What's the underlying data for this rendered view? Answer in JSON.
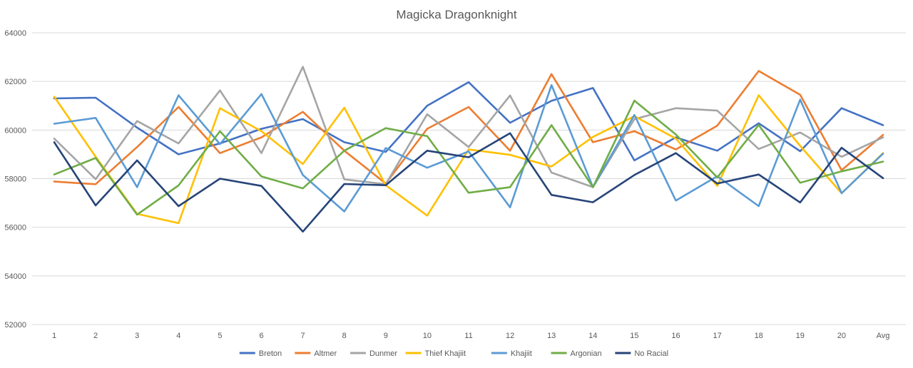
{
  "chart_data": {
    "type": "line",
    "title": "Magicka Dragonknight",
    "xlabel": "",
    "ylabel": "",
    "categories": [
      "1",
      "2",
      "3",
      "4",
      "5",
      "6",
      "7",
      "8",
      "9",
      "10",
      "11",
      "12",
      "13",
      "14",
      "15",
      "16",
      "17",
      "18",
      "19",
      "20",
      "Avg"
    ],
    "ylim": [
      52000,
      64000
    ],
    "yticks": [
      52000,
      54000,
      56000,
      58000,
      60000,
      62000,
      64000
    ],
    "y_tick_labels": [
      "52000",
      "54000",
      "56000",
      "58000",
      "60000",
      "62000",
      "64000"
    ],
    "grid": true,
    "legend_position": "bottom",
    "series": [
      {
        "name": "Breton",
        "color": "#4472c4",
        "values": [
          61300,
          61330,
          60100,
          59000,
          59450,
          60050,
          60450,
          59500,
          59100,
          61000,
          61970,
          60300,
          61200,
          61730,
          58750,
          59700,
          59150,
          60280,
          59130,
          60900,
          60200
        ]
      },
      {
        "name": "Altmer",
        "color": "#ed7d31",
        "values": [
          57880,
          57770,
          59300,
          60950,
          59050,
          59700,
          60750,
          59150,
          57800,
          60050,
          60950,
          59150,
          62300,
          59500,
          59950,
          59200,
          60180,
          62430,
          61450,
          58350,
          59800
        ]
      },
      {
        "name": "Dunmer",
        "color": "#a5a5a5",
        "values": [
          59650,
          57980,
          60370,
          59450,
          61630,
          59050,
          62600,
          57970,
          57770,
          60650,
          59300,
          61420,
          58250,
          57650,
          60450,
          60900,
          60800,
          59220,
          59900,
          58900,
          59700
        ]
      },
      {
        "name": "Thief Khajiit",
        "color": "#ffc000",
        "values": [
          61370,
          58900,
          56550,
          56170,
          60900,
          59950,
          58600,
          60920,
          57730,
          56480,
          59200,
          58980,
          58500,
          59720,
          60570,
          59650,
          57700,
          61430,
          59350,
          57400,
          59050
        ]
      },
      {
        "name": "Khajiit",
        "color": "#5b9bd5",
        "values": [
          60260,
          60500,
          57650,
          61430,
          59420,
          61480,
          58150,
          56650,
          59260,
          58450,
          59120,
          56820,
          61850,
          57650,
          60620,
          57100,
          58100,
          56870,
          61250,
          57400,
          59030
        ]
      },
      {
        "name": "Argonian",
        "color": "#70ad47",
        "values": [
          58170,
          58850,
          56520,
          57720,
          59950,
          58090,
          57600,
          59150,
          60080,
          59750,
          57420,
          57650,
          60200,
          57650,
          61210,
          59820,
          58050,
          60210,
          57830,
          58300,
          58700
        ]
      },
      {
        "name": "No Racial",
        "color": "#264478",
        "values": [
          59500,
          56900,
          58750,
          56870,
          58000,
          57700,
          55820,
          57780,
          57730,
          59150,
          58880,
          59870,
          57330,
          57030,
          58150,
          59050,
          57800,
          58170,
          57020,
          59270,
          58020
        ]
      }
    ]
  }
}
